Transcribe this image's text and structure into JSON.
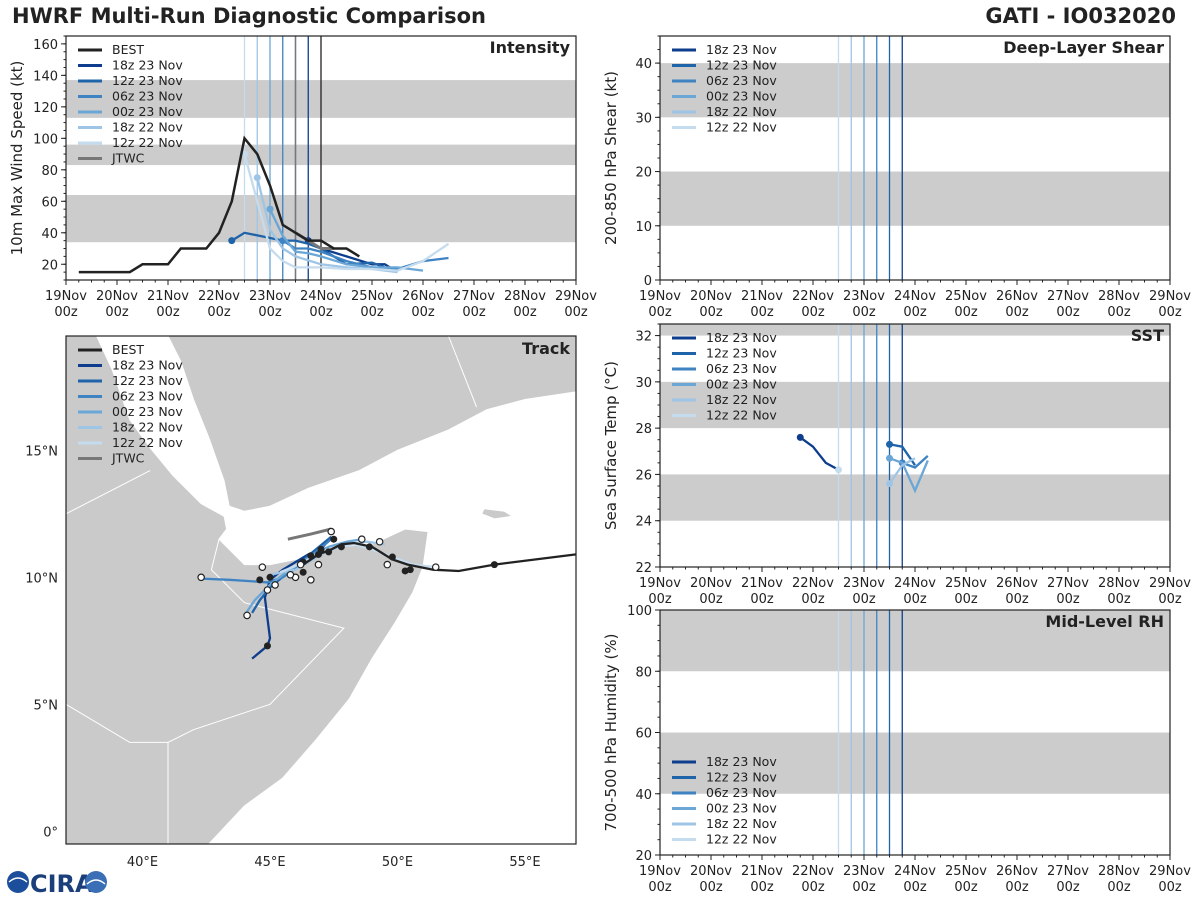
{
  "header": {
    "title_left": "HWRF Multi-Run Diagnostic Comparison",
    "title_right": "GATI - IO032020"
  },
  "logo": {
    "text": "CIRA"
  },
  "colors": {
    "best": "#222222",
    "jtwc": "#777777",
    "band": "#cccccc",
    "runs": [
      "#0d3d8c",
      "#1f63a8",
      "#3f83c2",
      "#6aa6d6",
      "#9ec5e6",
      "#c5dbee"
    ]
  },
  "time_axis": {
    "tick_values": [
      0,
      1,
      2,
      3,
      4,
      5,
      6,
      7,
      8,
      9,
      10
    ],
    "tick_labels": [
      [
        "19Nov",
        "00z"
      ],
      [
        "20Nov",
        "00z"
      ],
      [
        "21Nov",
        "00z"
      ],
      [
        "22Nov",
        "00z"
      ],
      [
        "23Nov",
        "00z"
      ],
      [
        "24Nov",
        "00z"
      ],
      [
        "25Nov",
        "00z"
      ],
      [
        "26Nov",
        "00z"
      ],
      [
        "27Nov",
        "00z"
      ],
      [
        "28Nov",
        "00z"
      ],
      [
        "29Nov",
        "00z"
      ]
    ],
    "init_lines": [
      3.5,
      3.75,
      4.0,
      4.25,
      4.5,
      4.75
    ]
  },
  "chart_data": [
    {
      "id": "intensity",
      "type": "line",
      "title": "Intensity",
      "ylabel": "10m Max Wind Speed (kt)",
      "xlabel": "",
      "xlim": [
        0,
        10
      ],
      "ylim": [
        10,
        165
      ],
      "yticks": [
        20,
        40,
        60,
        80,
        100,
        120,
        140,
        160
      ],
      "bands": [
        [
          34,
          64
        ],
        [
          83,
          96
        ],
        [
          113,
          137
        ]
      ],
      "legend": [
        "BEST",
        "18z 23 Nov",
        "12z 23 Nov",
        "06z 23 Nov",
        "00z 23 Nov",
        "18z 22 Nov",
        "12z 22 Nov",
        "JTWC"
      ],
      "best": {
        "x": [
          0.25,
          1.0,
          1.25,
          1.5,
          2.0,
          2.25,
          2.5,
          2.75,
          3.0,
          3.25,
          3.5,
          3.75,
          4.0,
          4.25,
          4.5,
          4.75,
          5.0,
          5.25,
          5.5,
          5.75
        ],
        "y": [
          15,
          15,
          15,
          20,
          20,
          30,
          30,
          30,
          40,
          60,
          100,
          90,
          70,
          45,
          40,
          35,
          35,
          30,
          30,
          25
        ]
      },
      "runs": [
        {
          "name": "18z 23 Nov",
          "x": [
            4.75,
            5.0,
            5.5,
            6.0,
            6.25,
            6.5
          ],
          "y": [
            35,
            30,
            25,
            20,
            20,
            15
          ]
        },
        {
          "name": "12z 23 Nov",
          "x": [
            3.25,
            3.5,
            4.25,
            4.5,
            4.75,
            5.0,
            5.5,
            6.0,
            6.25
          ],
          "y": [
            35,
            40,
            35,
            35,
            33,
            30,
            20,
            21,
            18
          ]
        },
        {
          "name": "06z 23 Nov",
          "x": [
            4.25,
            4.5,
            4.75,
            5.0,
            5.5,
            6.0,
            6.5,
            7.0,
            7.5
          ],
          "y": [
            35,
            30,
            30,
            28,
            22,
            18,
            17,
            22,
            24
          ]
        },
        {
          "name": "00z 23 Nov",
          "x": [
            4.0,
            4.25,
            4.5,
            4.75,
            5.0,
            5.5,
            6.0,
            6.5,
            7.0
          ],
          "y": [
            55,
            38,
            28,
            27,
            25,
            20,
            18,
            18,
            16
          ]
        },
        {
          "name": "18z 22 Nov",
          "x": [
            3.75,
            4.0,
            4.25,
            4.5,
            5.0,
            5.5,
            6.0,
            6.5
          ],
          "y": [
            75,
            42,
            30,
            25,
            20,
            18,
            17,
            15
          ]
        },
        {
          "name": "12z 22 Nov",
          "x": [
            3.5,
            3.75,
            4.0,
            4.25,
            4.5,
            5.0,
            5.5,
            6.0,
            6.5,
            7.0,
            7.5
          ],
          "y": [
            90,
            60,
            30,
            22,
            18,
            18,
            17,
            17,
            16,
            22,
            33
          ]
        }
      ],
      "jtwc": {
        "x": [
          4.5,
          4.75,
          5.0,
          5.25
        ],
        "y": [
          40,
          35,
          30,
          30
        ]
      }
    },
    {
      "id": "shear",
      "type": "line",
      "title": "Deep-Layer Shear",
      "ylabel": "200-850 hPa Shear (kt)",
      "xlabel": "",
      "xlim": [
        0,
        10
      ],
      "ylim": [
        0,
        45
      ],
      "yticks": [
        0,
        10,
        20,
        30,
        40
      ],
      "bands": [
        [
          10,
          20
        ],
        [
          30,
          40
        ]
      ],
      "legend": [
        "18z 23 Nov",
        "12z 23 Nov",
        "06z 23 Nov",
        "00z 23 Nov",
        "18z 22 Nov",
        "12z 22 Nov"
      ],
      "runs": []
    },
    {
      "id": "sst",
      "type": "line",
      "title": "SST",
      "ylabel": "Sea Surface Temp (°C)",
      "xlabel": "",
      "xlim": [
        0,
        10
      ],
      "ylim": [
        22,
        32.5
      ],
      "yticks": [
        22,
        24,
        26,
        28,
        30,
        32
      ],
      "bands": [
        [
          24,
          26
        ],
        [
          28,
          30
        ],
        [
          32,
          32.5
        ]
      ],
      "legend": [
        "18z 23 Nov",
        "12z 23 Nov",
        "06z 23 Nov",
        "00z 23 Nov",
        "18z 22 Nov",
        "12z 22 Nov"
      ],
      "runs": [
        {
          "name": "18z 23 Nov",
          "x": [
            2.75,
            3.0,
            3.25,
            3.5
          ],
          "y": [
            27.6,
            27.2,
            26.5,
            26.2
          ]
        },
        {
          "name": "12z 23 Nov",
          "x": [
            4.5,
            4.75,
            5.0
          ],
          "y": [
            27.3,
            27.2,
            26.4
          ]
        },
        {
          "name": "06z 23 Nov",
          "x": [
            4.75,
            5.0,
            5.25
          ],
          "y": [
            26.5,
            26.3,
            26.8
          ]
        },
        {
          "name": "00z 23 Nov",
          "x": [
            4.5,
            4.75,
            5.0,
            5.25
          ],
          "y": [
            26.7,
            26.5,
            25.3,
            26.6
          ]
        },
        {
          "name": "18z 22 Nov",
          "x": [
            4.5,
            4.75,
            5.0
          ],
          "y": [
            25.6,
            26.4,
            26.7
          ]
        },
        {
          "name": "12z 22 Nov",
          "x": [
            3.5
          ],
          "y": [
            26.2
          ]
        }
      ]
    },
    {
      "id": "rh",
      "type": "line",
      "title": "Mid-Level RH",
      "ylabel": "700-500 hPa Humidity (%)",
      "xlabel": "",
      "xlim": [
        0,
        10
      ],
      "ylim": [
        20,
        100
      ],
      "yticks": [
        20,
        40,
        60,
        80,
        100
      ],
      "bands": [
        [
          40,
          60
        ],
        [
          80,
          100
        ]
      ],
      "legend": [
        "18z 23 Nov",
        "12z 23 Nov",
        "06z 23 Nov",
        "00z 23 Nov",
        "18z 22 Nov",
        "12z 22 Nov"
      ],
      "runs": []
    },
    {
      "id": "track",
      "type": "scatter",
      "title": "Track",
      "xlabel": "",
      "ylabel": "",
      "xlim": [
        37,
        57
      ],
      "ylim": [
        -0.5,
        19.5
      ],
      "xticks": [
        40,
        45,
        50,
        55
      ],
      "xtick_labels": [
        "40°E",
        "45°E",
        "50°E",
        "55°E"
      ],
      "yticks": [
        0,
        5,
        10,
        15
      ],
      "ytick_labels": [
        "0°",
        "5°N",
        "10°N",
        "15°N"
      ],
      "legend": [
        "BEST",
        "18z 23 Nov",
        "12z 23 Nov",
        "06z 23 Nov",
        "00z 23 Nov",
        "18z 22 Nov",
        "12z 22 Nov",
        "JTWC"
      ],
      "best": {
        "lon": [
          57.0,
          53.8,
          52.4,
          51.4,
          50.4,
          49.8,
          49.0,
          48.3,
          47.8,
          47.4,
          46.9,
          46.6,
          46.3
        ],
        "lat": [
          10.9,
          10.5,
          10.25,
          10.3,
          10.5,
          10.7,
          11.2,
          11.35,
          11.3,
          11.1,
          10.9,
          10.7,
          10.5
        ]
      },
      "runs": [
        {
          "name": "18z 23 Nov",
          "lon": [
            47.4,
            47.0,
            46.5,
            46.0,
            45.5,
            45.0,
            44.8,
            44.9,
            45.0,
            44.9,
            44.3
          ],
          "lat": [
            11.6,
            11.1,
            10.9,
            10.6,
            10.3,
            9.9,
            9.2,
            8.4,
            7.6,
            7.3,
            6.8
          ]
        },
        {
          "name": "12z 23 Nov",
          "lon": [
            47.4,
            46.8,
            46.2,
            45.6,
            45.0,
            44.6,
            44.3
          ],
          "lat": [
            11.6,
            11.1,
            10.6,
            10.1,
            9.6,
            9.1,
            8.6
          ]
        },
        {
          "name": "06z 23 Nov",
          "lon": [
            47.4,
            46.8,
            46.1,
            45.5,
            44.9,
            44.2,
            43.4,
            42.3
          ],
          "lat": [
            11.5,
            11.0,
            10.4,
            10.0,
            9.8,
            9.85,
            9.9,
            9.95
          ]
        },
        {
          "name": "00z 23 Nov",
          "lon": [
            48.6,
            48.0,
            47.3,
            46.7,
            46.1,
            45.5,
            45.0,
            44.4,
            44.0
          ],
          "lat": [
            11.5,
            11.4,
            11.2,
            10.9,
            10.5,
            10.1,
            9.7,
            9.1,
            8.5
          ]
        },
        {
          "name": "18z 22 Nov",
          "lon": [
            49.5,
            48.8,
            48.0,
            47.2,
            46.5,
            46.0,
            45.5,
            45.0
          ],
          "lat": [
            11.3,
            11.4,
            11.3,
            11.0,
            10.6,
            10.3,
            10.2,
            10.1
          ]
        },
        {
          "name": "12z 22 Nov",
          "lon": [
            51.5,
            50.6,
            49.8,
            49.0,
            48.3,
            47.6,
            47.0,
            46.5,
            45.9,
            45.4
          ],
          "lat": [
            10.4,
            10.5,
            10.8,
            11.1,
            11.3,
            11.2,
            11.0,
            10.7,
            10.4,
            10.2
          ]
        }
      ],
      "jtwc": {
        "lon": [
          45.7,
          46.6,
          47.4
        ],
        "lat": [
          11.5,
          11.7,
          11.9
        ]
      },
      "dots_filled": [
        [
          53.8,
          10.5
        ],
        [
          49.8,
          10.8
        ],
        [
          48.9,
          11.2
        ],
        [
          47.8,
          11.2
        ],
        [
          47.3,
          11.0
        ],
        [
          46.9,
          10.9
        ],
        [
          46.6,
          10.85
        ],
        [
          46.3,
          10.6
        ],
        [
          45.0,
          10.0
        ],
        [
          44.6,
          9.9
        ],
        [
          44.9,
          7.3
        ],
        [
          46.3,
          10.2
        ],
        [
          47.0,
          11.1
        ],
        [
          50.3,
          10.25
        ],
        [
          50.5,
          10.3
        ],
        [
          47.5,
          11.5
        ]
      ],
      "dots_open": [
        [
          51.5,
          10.4
        ],
        [
          49.6,
          10.5
        ],
        [
          49.3,
          11.4
        ],
        [
          48.6,
          11.5
        ],
        [
          47.4,
          11.8
        ],
        [
          46.9,
          10.5
        ],
        [
          46.6,
          9.9
        ],
        [
          46.0,
          10.0
        ],
        [
          45.8,
          10.1
        ],
        [
          45.2,
          9.7
        ],
        [
          44.9,
          9.5
        ],
        [
          44.1,
          8.5
        ],
        [
          42.3,
          10.0
        ],
        [
          44.7,
          10.4
        ],
        [
          46.2,
          10.5
        ]
      ]
    }
  ]
}
